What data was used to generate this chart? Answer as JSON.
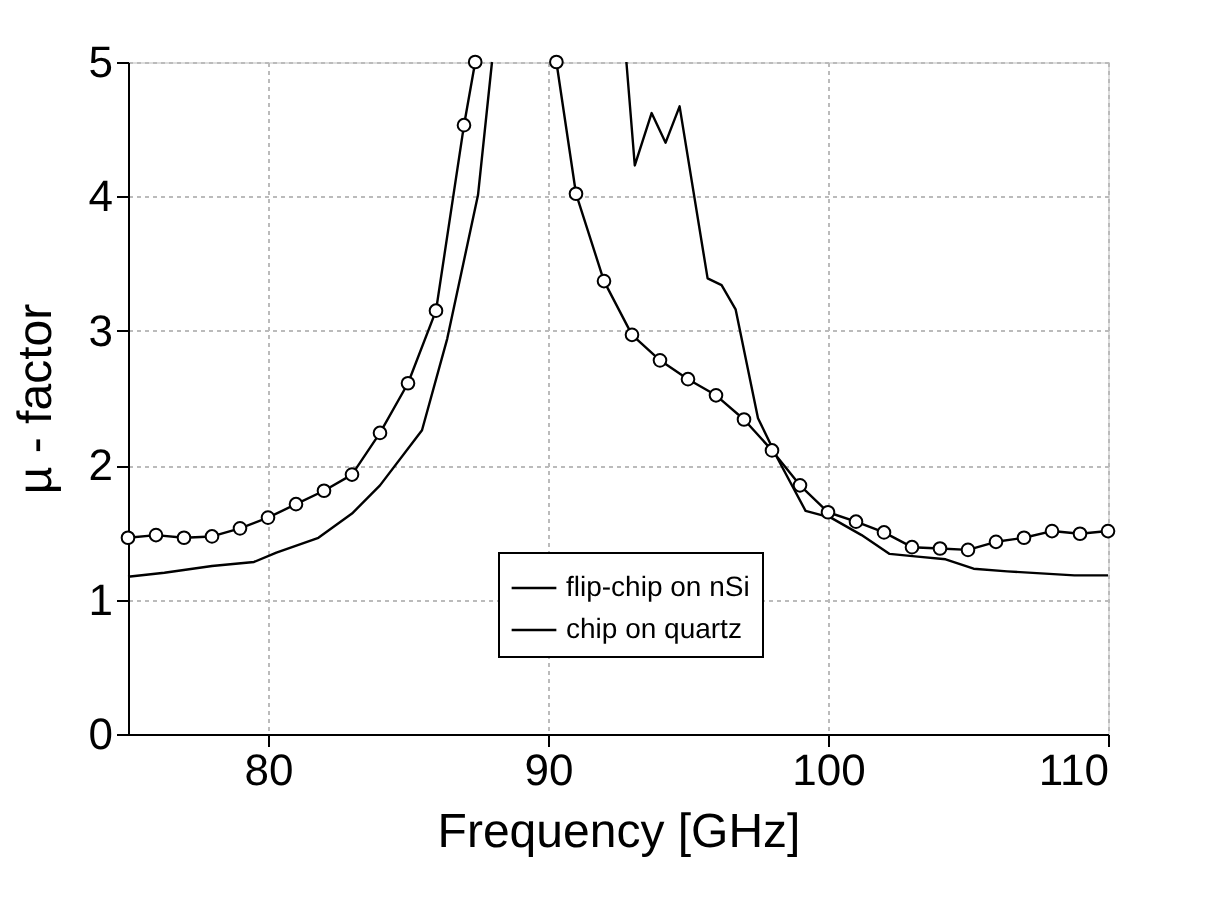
{
  "chart_data": {
    "type": "line",
    "xlabel": "Frequency  [GHz]",
    "ylabel": "µ - factor",
    "xlim": [
      75,
      110
    ],
    "ylim": [
      0,
      5
    ],
    "xticks": [
      80,
      90,
      100,
      110
    ],
    "yticks": [
      0,
      1,
      2,
      3,
      4,
      5
    ],
    "grid": true,
    "legend": "bottom",
    "series": [
      {
        "name": "flip-chip on nSi",
        "color": "#000000",
        "marker": "circle",
        "x": [
          75,
          76,
          77,
          78,
          79,
          80,
          81,
          82,
          83,
          84,
          85,
          86,
          87,
          87.4,
          null,
          90.3,
          91,
          92,
          93,
          94,
          95,
          96,
          97,
          98,
          99,
          100,
          101,
          102,
          103,
          104,
          105,
          106,
          107,
          108,
          109,
          110
        ],
        "values": [
          1.46,
          1.48,
          1.46,
          1.47,
          1.53,
          1.61,
          1.71,
          1.81,
          1.93,
          2.24,
          2.61,
          3.15,
          4.53,
          5.0,
          null,
          5.0,
          4.02,
          3.37,
          2.97,
          2.78,
          2.64,
          2.52,
          2.34,
          2.11,
          1.85,
          1.65,
          1.58,
          1.5,
          1.39,
          1.38,
          1.37,
          1.43,
          1.46,
          1.51,
          1.49,
          1.51
        ]
      },
      {
        "name": "chip on quartz",
        "color": "#000000",
        "marker": "none",
        "x": [
          75,
          76.3,
          78,
          79.5,
          80.3,
          81.8,
          83,
          84,
          85.5,
          86.4,
          87.5,
          88,
          null,
          92.8,
          93.1,
          93.7,
          94.2,
          94.7,
          95.7,
          96.2,
          96.7,
          97.5,
          98.2,
          99.2,
          100.1,
          101.2,
          102.2,
          103.2,
          104.2,
          105.2,
          106.4,
          108.8,
          110
        ],
        "values": [
          1.17,
          1.2,
          1.25,
          1.28,
          1.35,
          1.46,
          1.64,
          1.85,
          2.26,
          2.94,
          4.01,
          5.0,
          null,
          5.0,
          4.23,
          4.62,
          4.4,
          4.67,
          3.39,
          3.34,
          3.16,
          2.35,
          2.05,
          1.66,
          1.61,
          1.48,
          1.34,
          1.32,
          1.3,
          1.23,
          1.21,
          1.18,
          1.18
        ]
      }
    ]
  }
}
